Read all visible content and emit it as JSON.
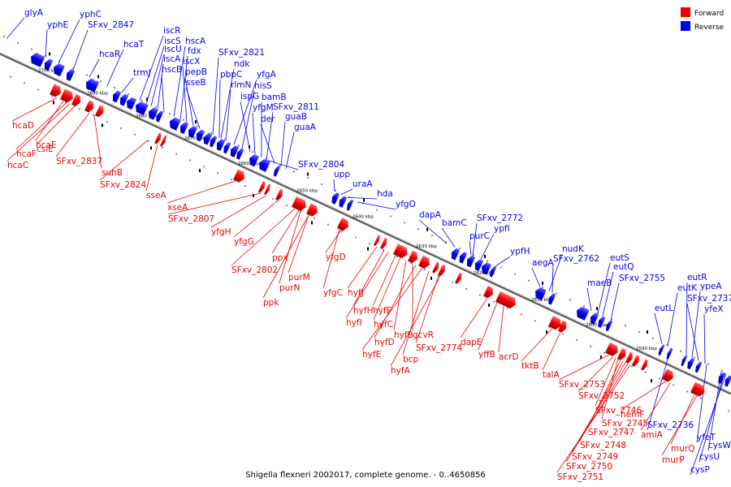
{
  "caption": "Shigella flexneri 2002017, complete genome. - 0..4650856",
  "legend": [
    {
      "label": "Forward",
      "color": "#ee0000"
    },
    {
      "label": "Reverse",
      "color": "#0000ee"
    }
  ],
  "colors": {
    "forward": "#ee0000",
    "reverse": "#0000ee",
    "backbone": "#808080"
  },
  "ticks": [
    "2700 kbp",
    "2690 kbp",
    "2680 kbp",
    "2670 kbp",
    "2660 kbp",
    "2650 kbp",
    "2640 kbp",
    "2630 kbp",
    "2620 kbp",
    "2610 kbp",
    "2600 kbp",
    "2590 kbp"
  ],
  "reverse_labels": [
    "glyA",
    "yphE",
    "yphC",
    "SFxv_2847",
    "hcaT",
    "hcaR",
    "trmJ",
    "iscR",
    "iscS",
    "iscU",
    "iscA",
    "hscB",
    "hscA",
    "fdx",
    "iscX",
    "pepB",
    "sseB",
    "SFxv_2821",
    "ndk",
    "pbpC",
    "rlmN",
    "yfgA",
    "hisS",
    "ispG",
    "yfgM",
    "bamB",
    "SFxv_2811",
    "der",
    "guaB",
    "guaA",
    "SFxv_2804",
    "upp",
    "uraA",
    "hda",
    "yfgO",
    "dapA",
    "bamC",
    "SFxv_2772",
    "purC",
    "ypfI",
    "ypfH",
    "aegA",
    "nudK",
    "SFxv_2762",
    "maeB",
    "eutS",
    "eutQ",
    "SFxv_2755",
    "eutL",
    "eutK",
    "eutR",
    "ypeA",
    "SFxv_2737",
    "yfeX",
    "SFxv_2736",
    "yfeT",
    "cysW",
    "cysU",
    "cysP"
  ],
  "forward_labels": [
    "hcaD",
    "hcaE",
    "hcaF",
    "hcaC",
    "csiE",
    "SFxv_2837",
    "suhB",
    "SFxv_2824",
    "sseA",
    "xseA",
    "SFxv_2807",
    "yfgH",
    "yfgG",
    "SFxv_2802",
    "ppx",
    "purM",
    "purN",
    "ppk",
    "yfgD",
    "yfgC",
    "hyfJ",
    "hyfH",
    "hyfF",
    "hyfI",
    "hyfC",
    "hyfB",
    "gcvR",
    "hyfD",
    "hyfE",
    "SFxv_2774",
    "bcp",
    "hyfA",
    "dapE",
    "yffB",
    "acrD",
    "tktB",
    "talA",
    "SFxv_2753",
    "SFxv_2752",
    "SFxv_2746",
    "SFxv_2745",
    "SFxv_2747",
    "SFxv_2748",
    "SFxv_2749",
    "SFxv_2750",
    "SFxv_2751",
    "hemF",
    "amiA",
    "murQ",
    "murP"
  ]
}
